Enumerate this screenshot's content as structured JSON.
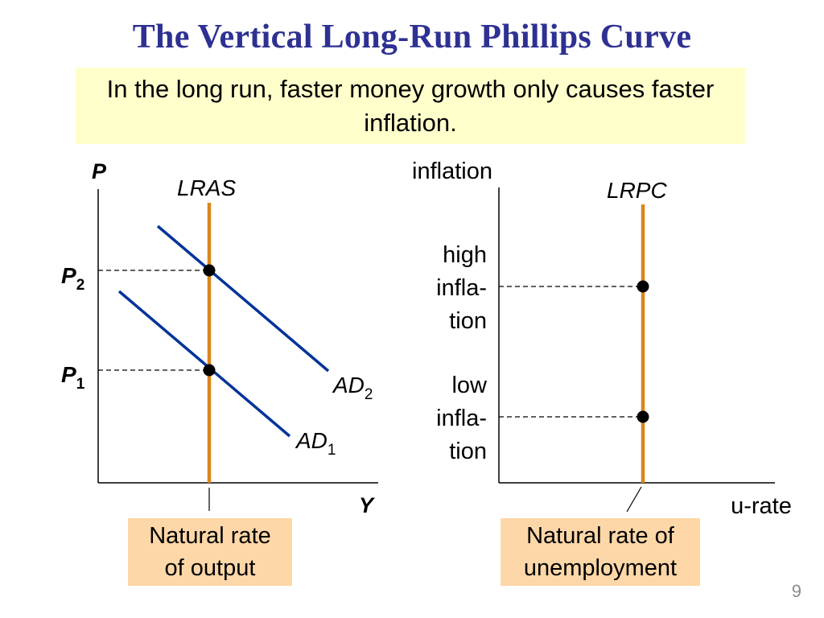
{
  "title": "The Vertical Long-Run Phillips Curve",
  "subtitle": "In the long run, faster money growth only causes faster inflation.",
  "left_graph": {
    "y_axis_label": "P",
    "x_axis_label": "Y",
    "vertical_curve_label": "LRAS",
    "p2_base": "P",
    "p2_sub": "2",
    "p1_base": "P",
    "p1_sub": "1",
    "ad2_base": "AD",
    "ad2_sub": "2",
    "ad1_base": "AD",
    "ad1_sub": "1",
    "callout_line1": "Natural rate",
    "callout_line2": "of output"
  },
  "right_graph": {
    "y_axis_label": "inflation",
    "x_axis_label": "u-rate",
    "vertical_curve_label": "LRPC",
    "high_line1": "high",
    "high_line2": "infla-",
    "high_line3": "tion",
    "low_line1": "low",
    "low_line2": "infla-",
    "low_line3": "tion",
    "callout_line1": "Natural rate of",
    "callout_line2": "unemployment"
  },
  "page_number": "9",
  "colors": {
    "title": "#2e3192",
    "ad_curves": "#003399",
    "vertical_curves": "#d9861c",
    "subtitle_bg": "#ffffcc",
    "callout_bg": "#fdd7a8"
  }
}
